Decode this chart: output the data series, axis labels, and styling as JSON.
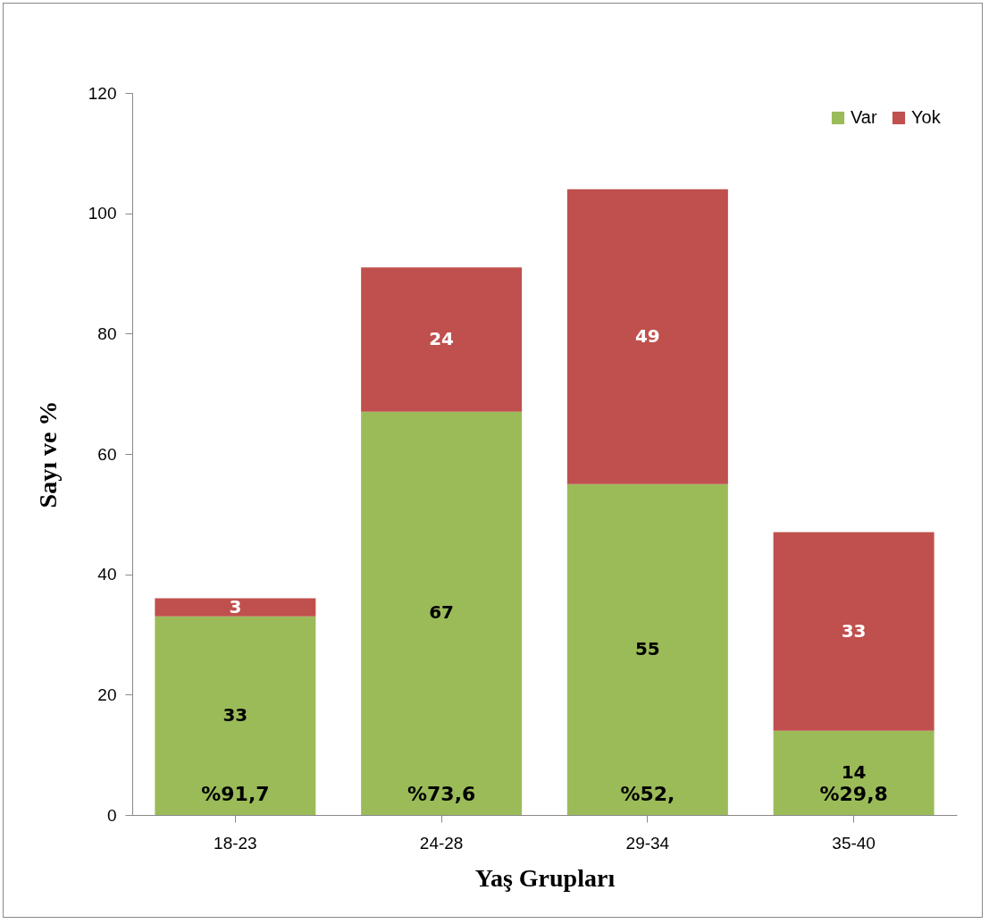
{
  "chart_data": {
    "type": "bar",
    "stacked": true,
    "xlabel": "Yaş Grupları",
    "ylabel": "Sayı ve %",
    "categories": [
      "18-23",
      "24-28",
      "29-34",
      "35-40"
    ],
    "series": [
      {
        "name": "Var",
        "color": "#9bbb59",
        "values": [
          33,
          67,
          55,
          14
        ]
      },
      {
        "name": "Yok",
        "color": "#c0504d",
        "values": [
          3,
          24,
          49,
          33
        ]
      }
    ],
    "ylim": [
      0,
      120
    ],
    "yticks": [
      0,
      20,
      40,
      60,
      80,
      100,
      120
    ],
    "grid": false,
    "legend": "top right",
    "data_labels": true,
    "annotations": [
      "%91,7",
      "%73,6",
      "%52,",
      "%29,8"
    ]
  }
}
